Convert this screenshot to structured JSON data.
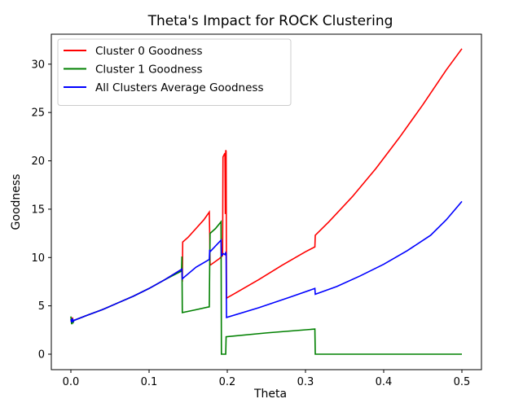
{
  "chart_data": {
    "type": "line",
    "title": "Theta's Impact for ROCK Clustering",
    "xlabel": "Theta",
    "ylabel": "Goodness",
    "xlim": [
      -0.025,
      0.525
    ],
    "ylim": [
      -1.6,
      33.1
    ],
    "xticks": [
      {
        "value": 0.0,
        "label": "0.0"
      },
      {
        "value": 0.1,
        "label": "0.1"
      },
      {
        "value": 0.2,
        "label": "0.2"
      },
      {
        "value": 0.3,
        "label": "0.3"
      },
      {
        "value": 0.4,
        "label": "0.4"
      },
      {
        "value": 0.5,
        "label": "0.5"
      }
    ],
    "yticks": [
      {
        "value": 0,
        "label": "0"
      },
      {
        "value": 5,
        "label": "5"
      },
      {
        "value": 10,
        "label": "10"
      },
      {
        "value": 15,
        "label": "15"
      },
      {
        "value": 20,
        "label": "20"
      },
      {
        "value": 25,
        "label": "25"
      },
      {
        "value": 30,
        "label": "30"
      }
    ],
    "grid": false,
    "legend_position": "top-left",
    "series": [
      {
        "name": "Cluster 0 Goodness",
        "color": "#ff0000",
        "points": [
          [
            0,
            3.6
          ],
          [
            0.001,
            3.2
          ],
          [
            0.002,
            3.8
          ],
          [
            0.003,
            3.4
          ],
          [
            0.004,
            3.5
          ],
          [
            0.02,
            4.0
          ],
          [
            0.04,
            4.6
          ],
          [
            0.06,
            5.3
          ],
          [
            0.08,
            6.0
          ],
          [
            0.1,
            6.8
          ],
          [
            0.12,
            7.7
          ],
          [
            0.142,
            8.8
          ],
          [
            0.1425,
            7.5
          ],
          [
            0.143,
            11.6
          ],
          [
            0.15,
            12.1
          ],
          [
            0.16,
            13.0
          ],
          [
            0.17,
            13.9
          ],
          [
            0.177,
            14.7
          ],
          [
            0.1775,
            12.5
          ],
          [
            0.178,
            9.2
          ],
          [
            0.185,
            9.6
          ],
          [
            0.19,
            9.9
          ],
          [
            0.194,
            10.2
          ],
          [
            0.1945,
            20.4
          ],
          [
            0.197,
            20.8
          ],
          [
            0.1975,
            14.5
          ],
          [
            0.198,
            21.1
          ],
          [
            0.1985,
            21.0
          ],
          [
            0.199,
            5.8
          ],
          [
            0.21,
            6.3
          ],
          [
            0.24,
            7.7
          ],
          [
            0.27,
            9.2
          ],
          [
            0.3,
            10.6
          ],
          [
            0.312,
            11.1
          ],
          [
            0.3125,
            12.3
          ],
          [
            0.33,
            13.7
          ],
          [
            0.36,
            16.3
          ],
          [
            0.39,
            19.2
          ],
          [
            0.42,
            22.4
          ],
          [
            0.45,
            25.8
          ],
          [
            0.48,
            29.4
          ],
          [
            0.5,
            31.6
          ]
        ]
      },
      {
        "name": "Cluster 1 Goodness",
        "color": "#008000",
        "points": [
          [
            0,
            3.9
          ],
          [
            0.001,
            3.1
          ],
          [
            0.002,
            3.6
          ],
          [
            0.003,
            3.3
          ],
          [
            0.004,
            3.5
          ],
          [
            0.02,
            4.0
          ],
          [
            0.04,
            4.6
          ],
          [
            0.06,
            5.3
          ],
          [
            0.08,
            6.0
          ],
          [
            0.1,
            6.8
          ],
          [
            0.12,
            7.7
          ],
          [
            0.1415,
            8.6
          ],
          [
            0.142,
            10.1
          ],
          [
            0.1425,
            4.3
          ],
          [
            0.16,
            4.6
          ],
          [
            0.177,
            4.9
          ],
          [
            0.1775,
            9.1
          ],
          [
            0.178,
            12.5
          ],
          [
            0.185,
            13.0
          ],
          [
            0.192,
            13.7
          ],
          [
            0.1925,
            0.0
          ],
          [
            0.198,
            0.0
          ],
          [
            0.1985,
            1.8
          ],
          [
            0.25,
            2.2
          ],
          [
            0.312,
            2.6
          ],
          [
            0.3125,
            0.0
          ],
          [
            0.5,
            0.0
          ]
        ]
      },
      {
        "name": "All Clusters Average Goodness",
        "color": "#0000ff",
        "points": [
          [
            0,
            3.6
          ],
          [
            0.001,
            3.3
          ],
          [
            0.002,
            3.7
          ],
          [
            0.003,
            3.4
          ],
          [
            0.004,
            3.5
          ],
          [
            0.02,
            4.0
          ],
          [
            0.04,
            4.6
          ],
          [
            0.06,
            5.3
          ],
          [
            0.08,
            6.0
          ],
          [
            0.1,
            6.8
          ],
          [
            0.12,
            7.7
          ],
          [
            0.142,
            8.8
          ],
          [
            0.1425,
            7.8
          ],
          [
            0.16,
            9.0
          ],
          [
            0.177,
            9.8
          ],
          [
            0.1775,
            10.8
          ],
          [
            0.178,
            10.6
          ],
          [
            0.185,
            11.2
          ],
          [
            0.192,
            11.8
          ],
          [
            0.1925,
            10.2
          ],
          [
            0.195,
            10.4
          ],
          [
            0.197,
            10.3
          ],
          [
            0.198,
            10.5
          ],
          [
            0.1985,
            10.4
          ],
          [
            0.199,
            3.8
          ],
          [
            0.24,
            4.8
          ],
          [
            0.28,
            5.9
          ],
          [
            0.312,
            6.8
          ],
          [
            0.3125,
            6.2
          ],
          [
            0.34,
            7.0
          ],
          [
            0.37,
            8.1
          ],
          [
            0.4,
            9.3
          ],
          [
            0.43,
            10.7
          ],
          [
            0.46,
            12.3
          ],
          [
            0.48,
            13.9
          ],
          [
            0.5,
            15.8
          ]
        ]
      }
    ]
  }
}
